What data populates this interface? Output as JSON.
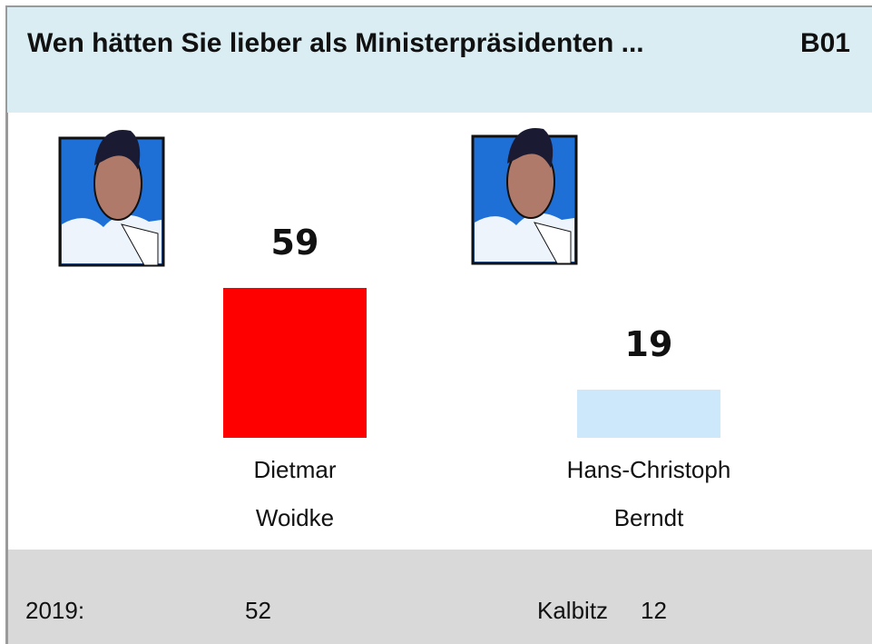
{
  "chart_data": {
    "type": "bar",
    "title": "Wen hätten Sie lieber als Ministerpräsidenten ...",
    "code": "B01",
    "categories": [
      "Dietmar Woidke",
      "Hans-Christoph Berndt"
    ],
    "values": [
      59,
      19
    ],
    "colors": [
      "#ff0000",
      "#cce8fa"
    ],
    "comparison": {
      "label": "2019:",
      "items": [
        {
          "value": 52
        },
        {
          "name": "Kalbitz",
          "value": 12
        }
      ]
    }
  }
}
